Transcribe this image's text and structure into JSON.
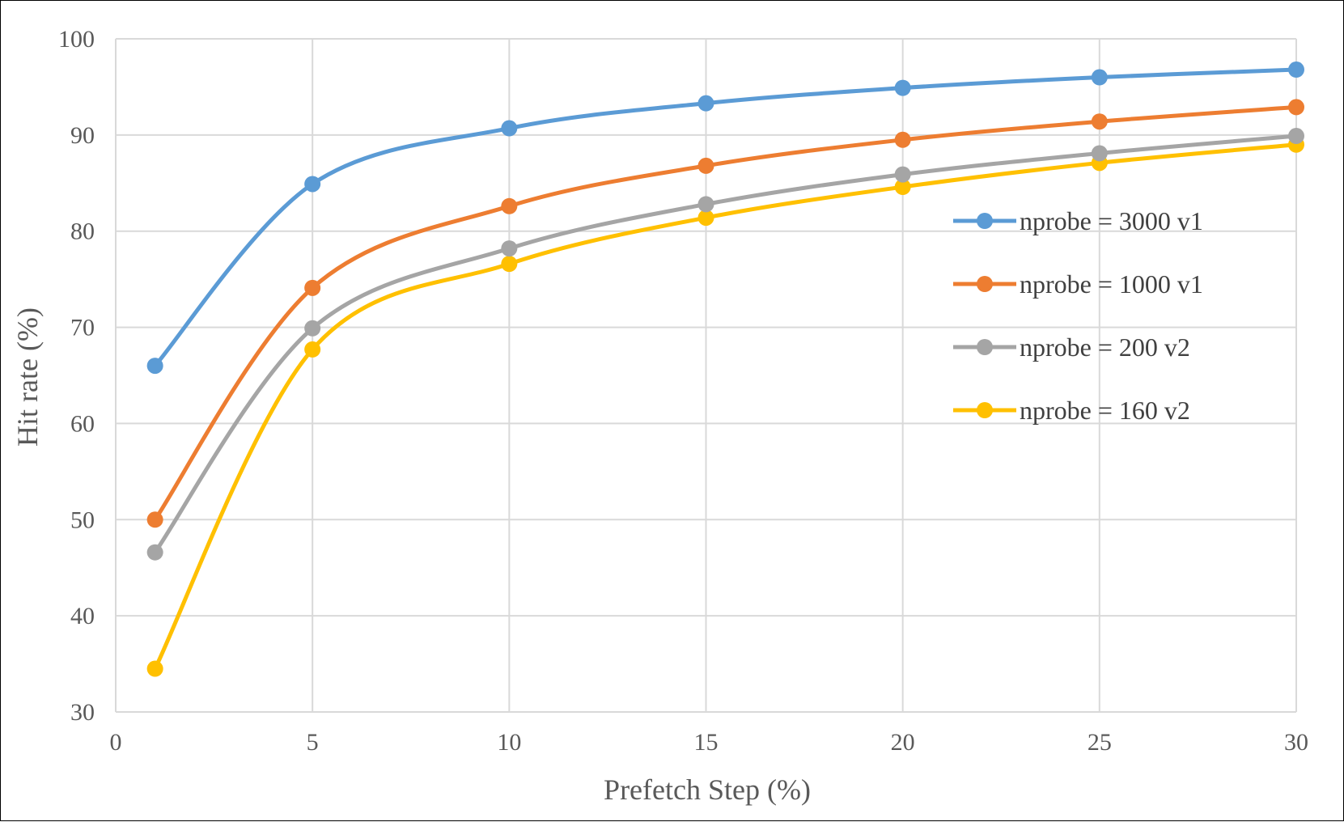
{
  "chart_data": {
    "type": "line",
    "title": "",
    "xlabel": "Prefetch Step (%)",
    "ylabel": "Hit rate (%)",
    "xlim": [
      0,
      30
    ],
    "ylim": [
      30,
      100
    ],
    "xticks": [
      0,
      5,
      10,
      15,
      20,
      25,
      30
    ],
    "yticks": [
      30,
      40,
      50,
      60,
      70,
      80,
      90,
      100
    ],
    "grid": true,
    "smooth": true,
    "legend_position": "right",
    "x": [
      1,
      5,
      10,
      15,
      20,
      25,
      30
    ],
    "series": [
      {
        "name": "nprobe = 3000 v1",
        "color": "#5B9BD5",
        "values": [
          66.0,
          84.9,
          90.7,
          93.3,
          94.9,
          96.0,
          96.8
        ]
      },
      {
        "name": "nprobe = 1000 v1",
        "color": "#ED7D31",
        "values": [
          50.0,
          74.1,
          82.6,
          86.8,
          89.5,
          91.4,
          92.9
        ]
      },
      {
        "name": "nprobe = 200 v2",
        "color": "#A5A5A5",
        "values": [
          46.6,
          69.9,
          78.2,
          82.8,
          85.9,
          88.1,
          89.9
        ]
      },
      {
        "name": "nprobe = 160 v2",
        "color": "#FFC000",
        "values": [
          34.5,
          67.7,
          76.6,
          81.4,
          84.6,
          87.1,
          89.0
        ]
      }
    ]
  }
}
